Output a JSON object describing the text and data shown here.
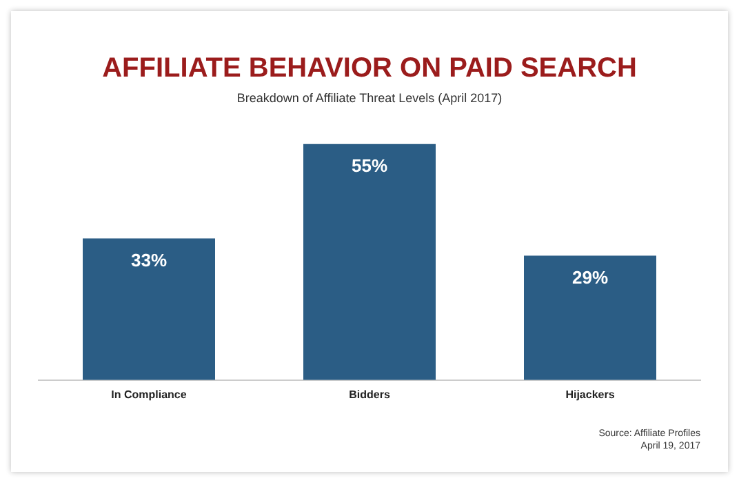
{
  "chart_data": {
    "type": "bar",
    "title": "AFFILIATE BEHAVIOR ON PAID SEARCH",
    "subtitle": "Breakdown of Affiliate Threat Levels (April 2017)",
    "categories": [
      "In Compliance",
      "Bidders",
      "Hijackers"
    ],
    "values": [
      33,
      55,
      29
    ],
    "value_labels": [
      "33%",
      "55%",
      "29%"
    ],
    "color": "#2b5d85",
    "grid": false,
    "legend": false,
    "annotations": [
      "Source: Affiliate Profiles",
      "April 19, 2017"
    ]
  }
}
